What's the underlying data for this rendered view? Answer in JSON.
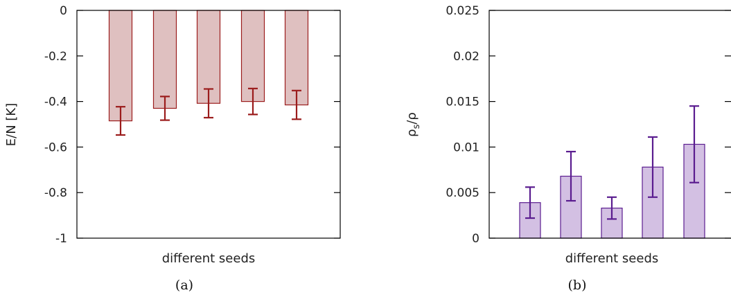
{
  "chart_data": [
    {
      "type": "bar",
      "caption": "(a)",
      "xlabel": "different seeds",
      "ylabel": "E/N [K]",
      "ylim": [
        -1,
        0
      ],
      "yticks": [
        "0",
        "-0.2",
        "-0.4",
        "-0.6",
        "-0.8",
        "-1"
      ],
      "ytick_values": [
        0,
        -0.2,
        -0.4,
        -0.6,
        -0.8,
        -1
      ],
      "values": [
        -0.485,
        -0.43,
        -0.408,
        -0.4,
        -0.415
      ],
      "errors": [
        0.062,
        0.052,
        0.063,
        0.057,
        0.063
      ],
      "grid": false,
      "colors": {
        "fill": "#dfc0c0",
        "stroke": "#9b1c1c",
        "error": "#9b1c1c"
      }
    },
    {
      "type": "bar",
      "caption": "(b)",
      "xlabel": "different seeds",
      "ylabel": "ρs/ρ",
      "ylim": [
        0,
        0.025
      ],
      "yticks": [
        "0.025",
        "0.02",
        "0.015",
        "0.01",
        "0.005",
        "0"
      ],
      "ytick_values": [
        0.025,
        0.02,
        0.015,
        0.01,
        0.005,
        0
      ],
      "values": [
        0.0039,
        0.0068,
        0.0033,
        0.0078,
        0.0103
      ],
      "errors": [
        0.0017,
        0.0027,
        0.0012,
        0.0033,
        0.0042
      ],
      "grid": false,
      "colors": {
        "fill": "#d3c0e3",
        "stroke": "#5a1c8f",
        "error": "#5a1c8f"
      }
    }
  ]
}
